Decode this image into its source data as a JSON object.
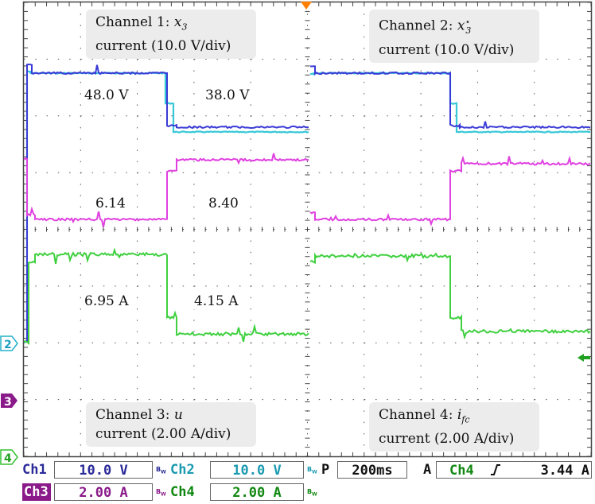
{
  "channels": {
    "ch1": {
      "title": "Channel 1:",
      "var": "x",
      "sub": "3",
      "sup": "",
      "scale": "current (10.0 V/div)",
      "color": "#3a3ad6"
    },
    "ch2": {
      "title": "Channel 2:",
      "var": "x",
      "sub": "3",
      "sup": "⋆",
      "scale": "current (10.0 V/div)",
      "color": "#38c8d8"
    },
    "ch3": {
      "title": "Channel 3:",
      "var": "u",
      "sub": "",
      "sup": "",
      "scale": "current (2.00 A/div)",
      "color": "#e040e0"
    },
    "ch4": {
      "title": "Channel 4:",
      "var": "i",
      "sub": "fc",
      "sup": "",
      "scale": "current (2.00 A/div)",
      "color": "#40d040"
    }
  },
  "annotations": {
    "v_high": "48.0 V",
    "v_low": "38.0 V",
    "u_low": "6.14",
    "u_high": "8.40",
    "i_high": "6.95 A",
    "i_low": "4.15 A"
  },
  "markers": {
    "m2": "2",
    "m3": "3",
    "m4": "4"
  },
  "status_bar": {
    "ch1_label": "Ch1",
    "ch1_value": "10.0 V",
    "ch2_label": "Ch2",
    "ch2_value": "10.0 V",
    "ch3_label": "Ch3",
    "ch3_value": "2.00 A",
    "ch4_label": "Ch4",
    "ch4_value": "2.00 A",
    "bw": "B",
    "bw_sub": "W",
    "p_label": "P",
    "timebase": "200ms",
    "trigger_mode": "A",
    "trigger_source": "Ch4",
    "trigger_slope_icon": "rising-edge-icon",
    "trigger_level": "3.44 A"
  },
  "trace_levels": {
    "voltage_high_V": 48.0,
    "voltage_low_V": 38.0,
    "control_low": 6.14,
    "control_high": 8.4,
    "current_high_A": 6.95,
    "current_low_A": 4.15
  }
}
